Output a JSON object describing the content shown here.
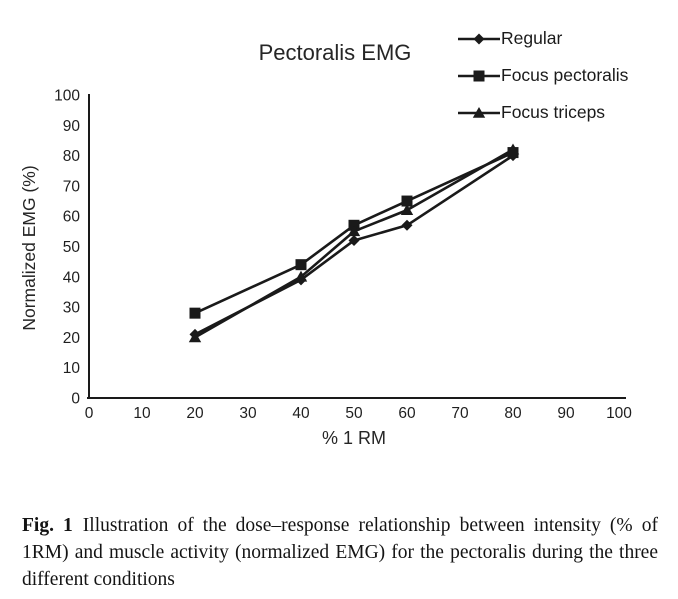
{
  "chart_data": {
    "type": "line",
    "title": "Pectoralis EMG",
    "xlabel": "% 1 RM",
    "ylabel": "Normalized EMG (%)",
    "xlim": [
      0,
      100
    ],
    "ylim": [
      0,
      100
    ],
    "xticks": [
      0,
      10,
      20,
      30,
      40,
      50,
      60,
      70,
      80,
      90,
      100
    ],
    "yticks": [
      0,
      10,
      20,
      30,
      40,
      50,
      60,
      70,
      80,
      90,
      100
    ],
    "grid": false,
    "legend_position": "top-right",
    "line_color": "#1a1a1a",
    "x": [
      20,
      40,
      50,
      60,
      80
    ],
    "series": [
      {
        "name": "Regular",
        "marker": "diamond",
        "values": [
          21,
          39,
          52,
          57,
          80
        ]
      },
      {
        "name": "Focus pectoralis",
        "marker": "square",
        "values": [
          28,
          44,
          57,
          65,
          81
        ]
      },
      {
        "name": "Focus triceps",
        "marker": "triangle",
        "values": [
          20,
          40,
          55,
          62,
          82
        ]
      }
    ]
  },
  "caption": {
    "label": "Fig. 1",
    "text": "Illustration of the dose–response relationship between intensity (% of 1RM) and muscle activity (normalized EMG) for the pectoralis during the three different conditions"
  }
}
